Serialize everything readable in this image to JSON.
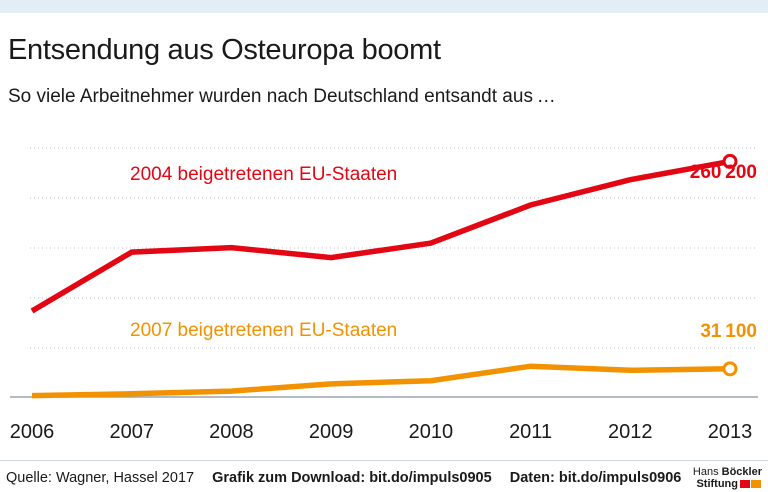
{
  "header": {
    "title": "Entsendung aus Osteuropa boomt",
    "subtitle": "So viele Arbeitnehmer wurden nach Deutschland entsandt aus …"
  },
  "chart_data": {
    "type": "line",
    "x": [
      "2006",
      "2007",
      "2008",
      "2009",
      "2010",
      "2011",
      "2012",
      "2013"
    ],
    "series": [
      {
        "name": "2004 beigetretenen EU-Staaten",
        "color": "#e30613",
        "values": [
          95000,
          160000,
          165000,
          154000,
          170000,
          212000,
          240000,
          260200
        ],
        "end_label": "260 200"
      },
      {
        "name": "2007 beigetretenen EU-Staaten",
        "color": "#f39200",
        "values": [
          1500,
          3500,
          6500,
          14500,
          18000,
          34000,
          29500,
          31100
        ],
        "end_label": "31 100"
      }
    ],
    "ylim": [
      0,
      275000
    ],
    "xlabel": "",
    "ylabel": "",
    "grid": true
  },
  "footer": {
    "source": "Quelle: Wagner, Hassel 2017",
    "download": "Grafik zum Download: bit.do/impuls0905",
    "data": "Daten: bit.do/impuls0906"
  },
  "logo": {
    "line1_plain": "Hans ",
    "line1_bold": "Böckler",
    "line2": "Stiftung",
    "colors": [
      "#e30613",
      "#f39200"
    ]
  }
}
